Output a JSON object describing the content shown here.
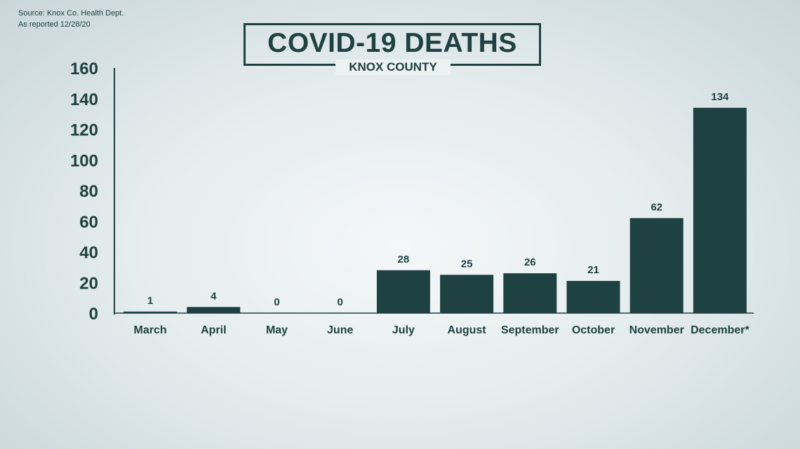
{
  "source": {
    "line1": "Source: Knox Co. Health Dept.",
    "line2": "As reported 12/28/20"
  },
  "colors": {
    "bar": "#1e4141",
    "text": "#1e4141",
    "background": "#e6edef"
  },
  "chart_data": {
    "type": "bar",
    "title": "COVID-19 DEATHS",
    "subtitle": "KNOX COUNTY",
    "categories": [
      "March",
      "April",
      "May",
      "June",
      "July",
      "August",
      "September",
      "October",
      "November",
      "December*"
    ],
    "values": [
      1,
      4,
      0,
      0,
      28,
      25,
      26,
      21,
      62,
      134
    ],
    "ylim": [
      0,
      160
    ],
    "yticks": [
      0,
      20,
      40,
      60,
      80,
      100,
      120,
      140,
      160
    ],
    "xlabel": "",
    "ylabel": "",
    "grid": false,
    "data_labels": true
  }
}
